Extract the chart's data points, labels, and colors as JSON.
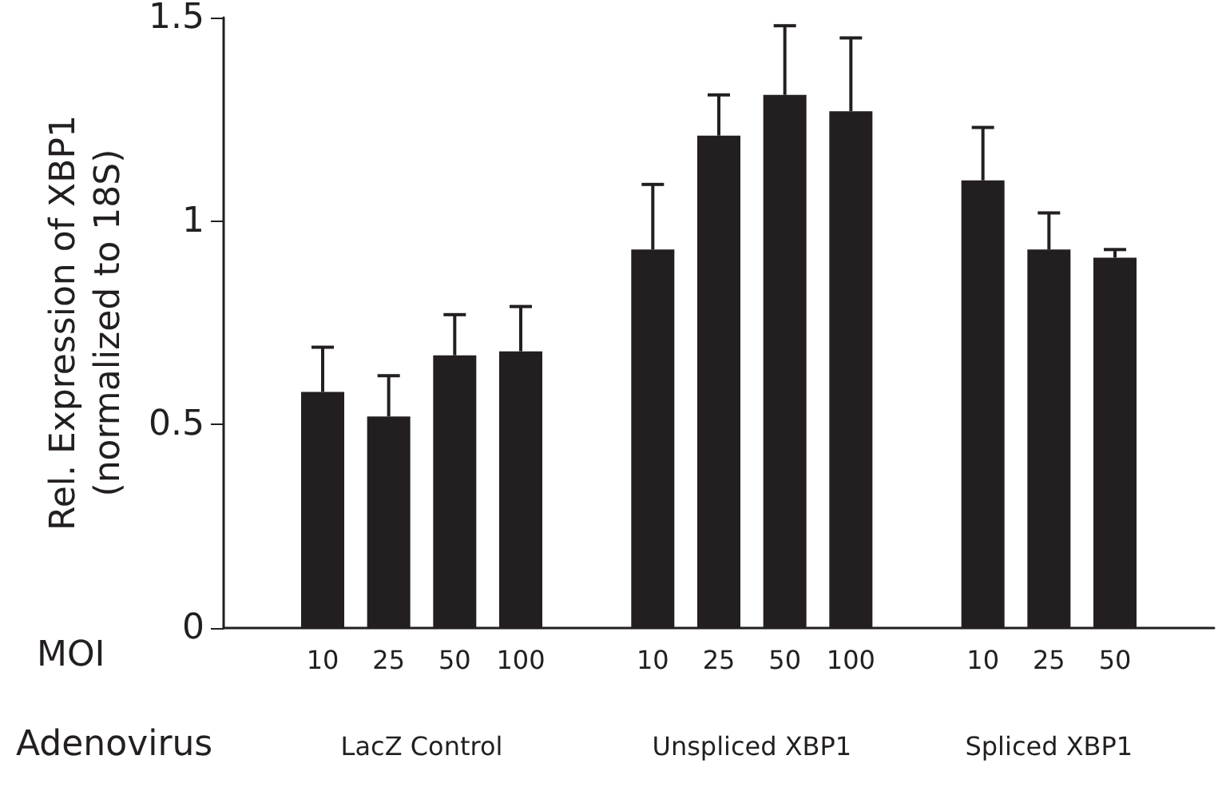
{
  "chart_data": {
    "type": "bar",
    "ylabel": "Rel. Expression of XBP1\n(normalized to 18S)",
    "categories": [
      null,
      "10",
      "25",
      "50",
      "100",
      null,
      "10",
      "25",
      "50",
      "100",
      null,
      "10",
      "25",
      "50",
      null
    ],
    "values": [
      null,
      0.58,
      0.52,
      0.67,
      0.68,
      null,
      0.93,
      1.21,
      1.31,
      1.27,
      null,
      1.1,
      0.93,
      0.91,
      null
    ],
    "errors": [
      null,
      [
        0.58,
        0.69
      ],
      [
        0.52,
        0.62
      ],
      [
        0.67,
        0.77
      ],
      [
        0.68,
        0.79
      ],
      null,
      [
        0.93,
        1.09
      ],
      [
        1.21,
        1.31
      ],
      [
        1.31,
        1.48
      ],
      [
        1.27,
        1.45
      ],
      null,
      [
        1.1,
        1.23
      ],
      [
        0.93,
        1.02
      ],
      [
        0.91,
        0.93
      ],
      null
    ],
    "color": "#231f20",
    "ylim": [
      0,
      1.5
    ],
    "yticks": [
      0,
      0.5,
      1,
      1.5
    ],
    "grid": false,
    "annotations": [
      "MOI",
      "Adenovirus",
      "LacZ Control",
      "Unspliced XBP1",
      "Spliced XBP1"
    ]
  }
}
